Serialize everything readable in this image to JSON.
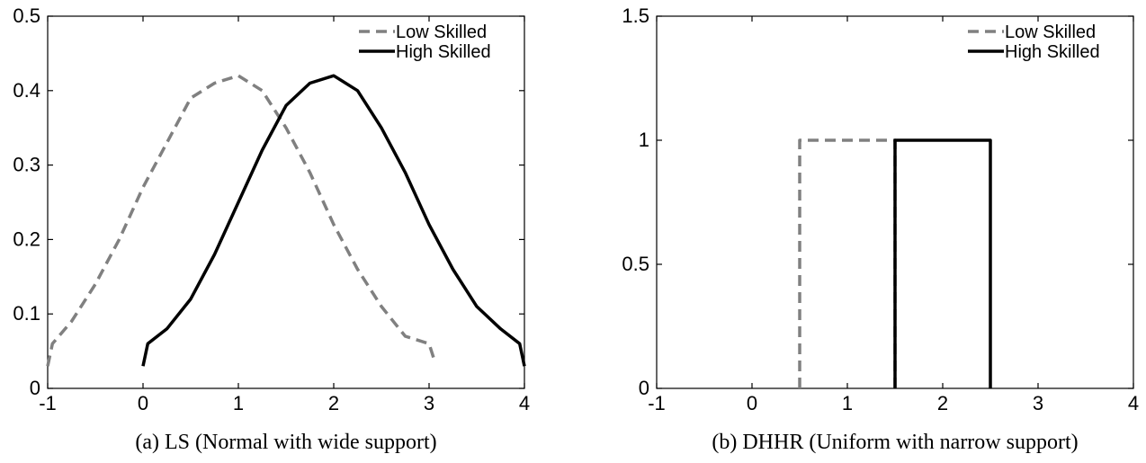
{
  "chart_data": [
    {
      "type": "line",
      "caption": "(a)  LS (Normal with wide support)",
      "xlim": [
        -1,
        4
      ],
      "ylim": [
        0,
        0.5
      ],
      "xticks": [
        -1,
        0,
        1,
        2,
        3,
        4
      ],
      "yticks": [
        0,
        0.1,
        0.2,
        0.3,
        0.4,
        0.5
      ],
      "xtick_labels": [
        "-1",
        "0",
        "1",
        "2",
        "3",
        "4"
      ],
      "ytick_labels": [
        "0",
        "0.1",
        "0.2",
        "0.3",
        "0.4",
        "0.5"
      ],
      "legend_position": "top-right",
      "series": [
        {
          "name": "Low Skilled",
          "color": "#808080",
          "style": "dashed",
          "x": [
            -1,
            -0.95,
            -0.75,
            -0.5,
            -0.25,
            0,
            0.25,
            0.5,
            0.75,
            1,
            1.25,
            1.5,
            1.75,
            2,
            2.25,
            2.5,
            2.75,
            3,
            3.05
          ],
          "y": [
            0.03,
            0.06,
            0.09,
            0.14,
            0.2,
            0.27,
            0.33,
            0.39,
            0.41,
            0.42,
            0.4,
            0.35,
            0.29,
            0.22,
            0.16,
            0.11,
            0.07,
            0.06,
            0.04
          ]
        },
        {
          "name": "High Skilled",
          "color": "#000000",
          "style": "solid",
          "x": [
            0,
            0.05,
            0.25,
            0.5,
            0.75,
            1,
            1.25,
            1.5,
            1.75,
            2,
            2.25,
            2.5,
            2.75,
            3,
            3.25,
            3.5,
            3.75,
            3.95,
            4
          ],
          "y": [
            0.03,
            0.06,
            0.08,
            0.12,
            0.18,
            0.25,
            0.32,
            0.38,
            0.41,
            0.42,
            0.4,
            0.35,
            0.29,
            0.22,
            0.16,
            0.11,
            0.08,
            0.06,
            0.03
          ]
        }
      ]
    },
    {
      "type": "line",
      "caption": "(b)  DHHR (Uniform with narrow support)",
      "xlim": [
        -1,
        4
      ],
      "ylim": [
        0,
        1.5
      ],
      "xticks": [
        -1,
        0,
        1,
        2,
        3,
        4
      ],
      "yticks": [
        0,
        0.5,
        1,
        1.5
      ],
      "xtick_labels": [
        "-1",
        "0",
        "1",
        "2",
        "3",
        "4"
      ],
      "ytick_labels": [
        "0",
        "0.5",
        "1",
        "1.5"
      ],
      "legend_position": "top-right",
      "series": [
        {
          "name": "Low Skilled",
          "color": "#808080",
          "style": "dashed",
          "x": [
            0.5,
            0.5,
            1.5,
            1.5
          ],
          "y": [
            0,
            1,
            1,
            0
          ]
        },
        {
          "name": "High Skilled",
          "color": "#000000",
          "style": "solid",
          "x": [
            1.5,
            1.5,
            2.5,
            2.5
          ],
          "y": [
            0,
            1,
            1,
            0
          ]
        }
      ]
    }
  ]
}
